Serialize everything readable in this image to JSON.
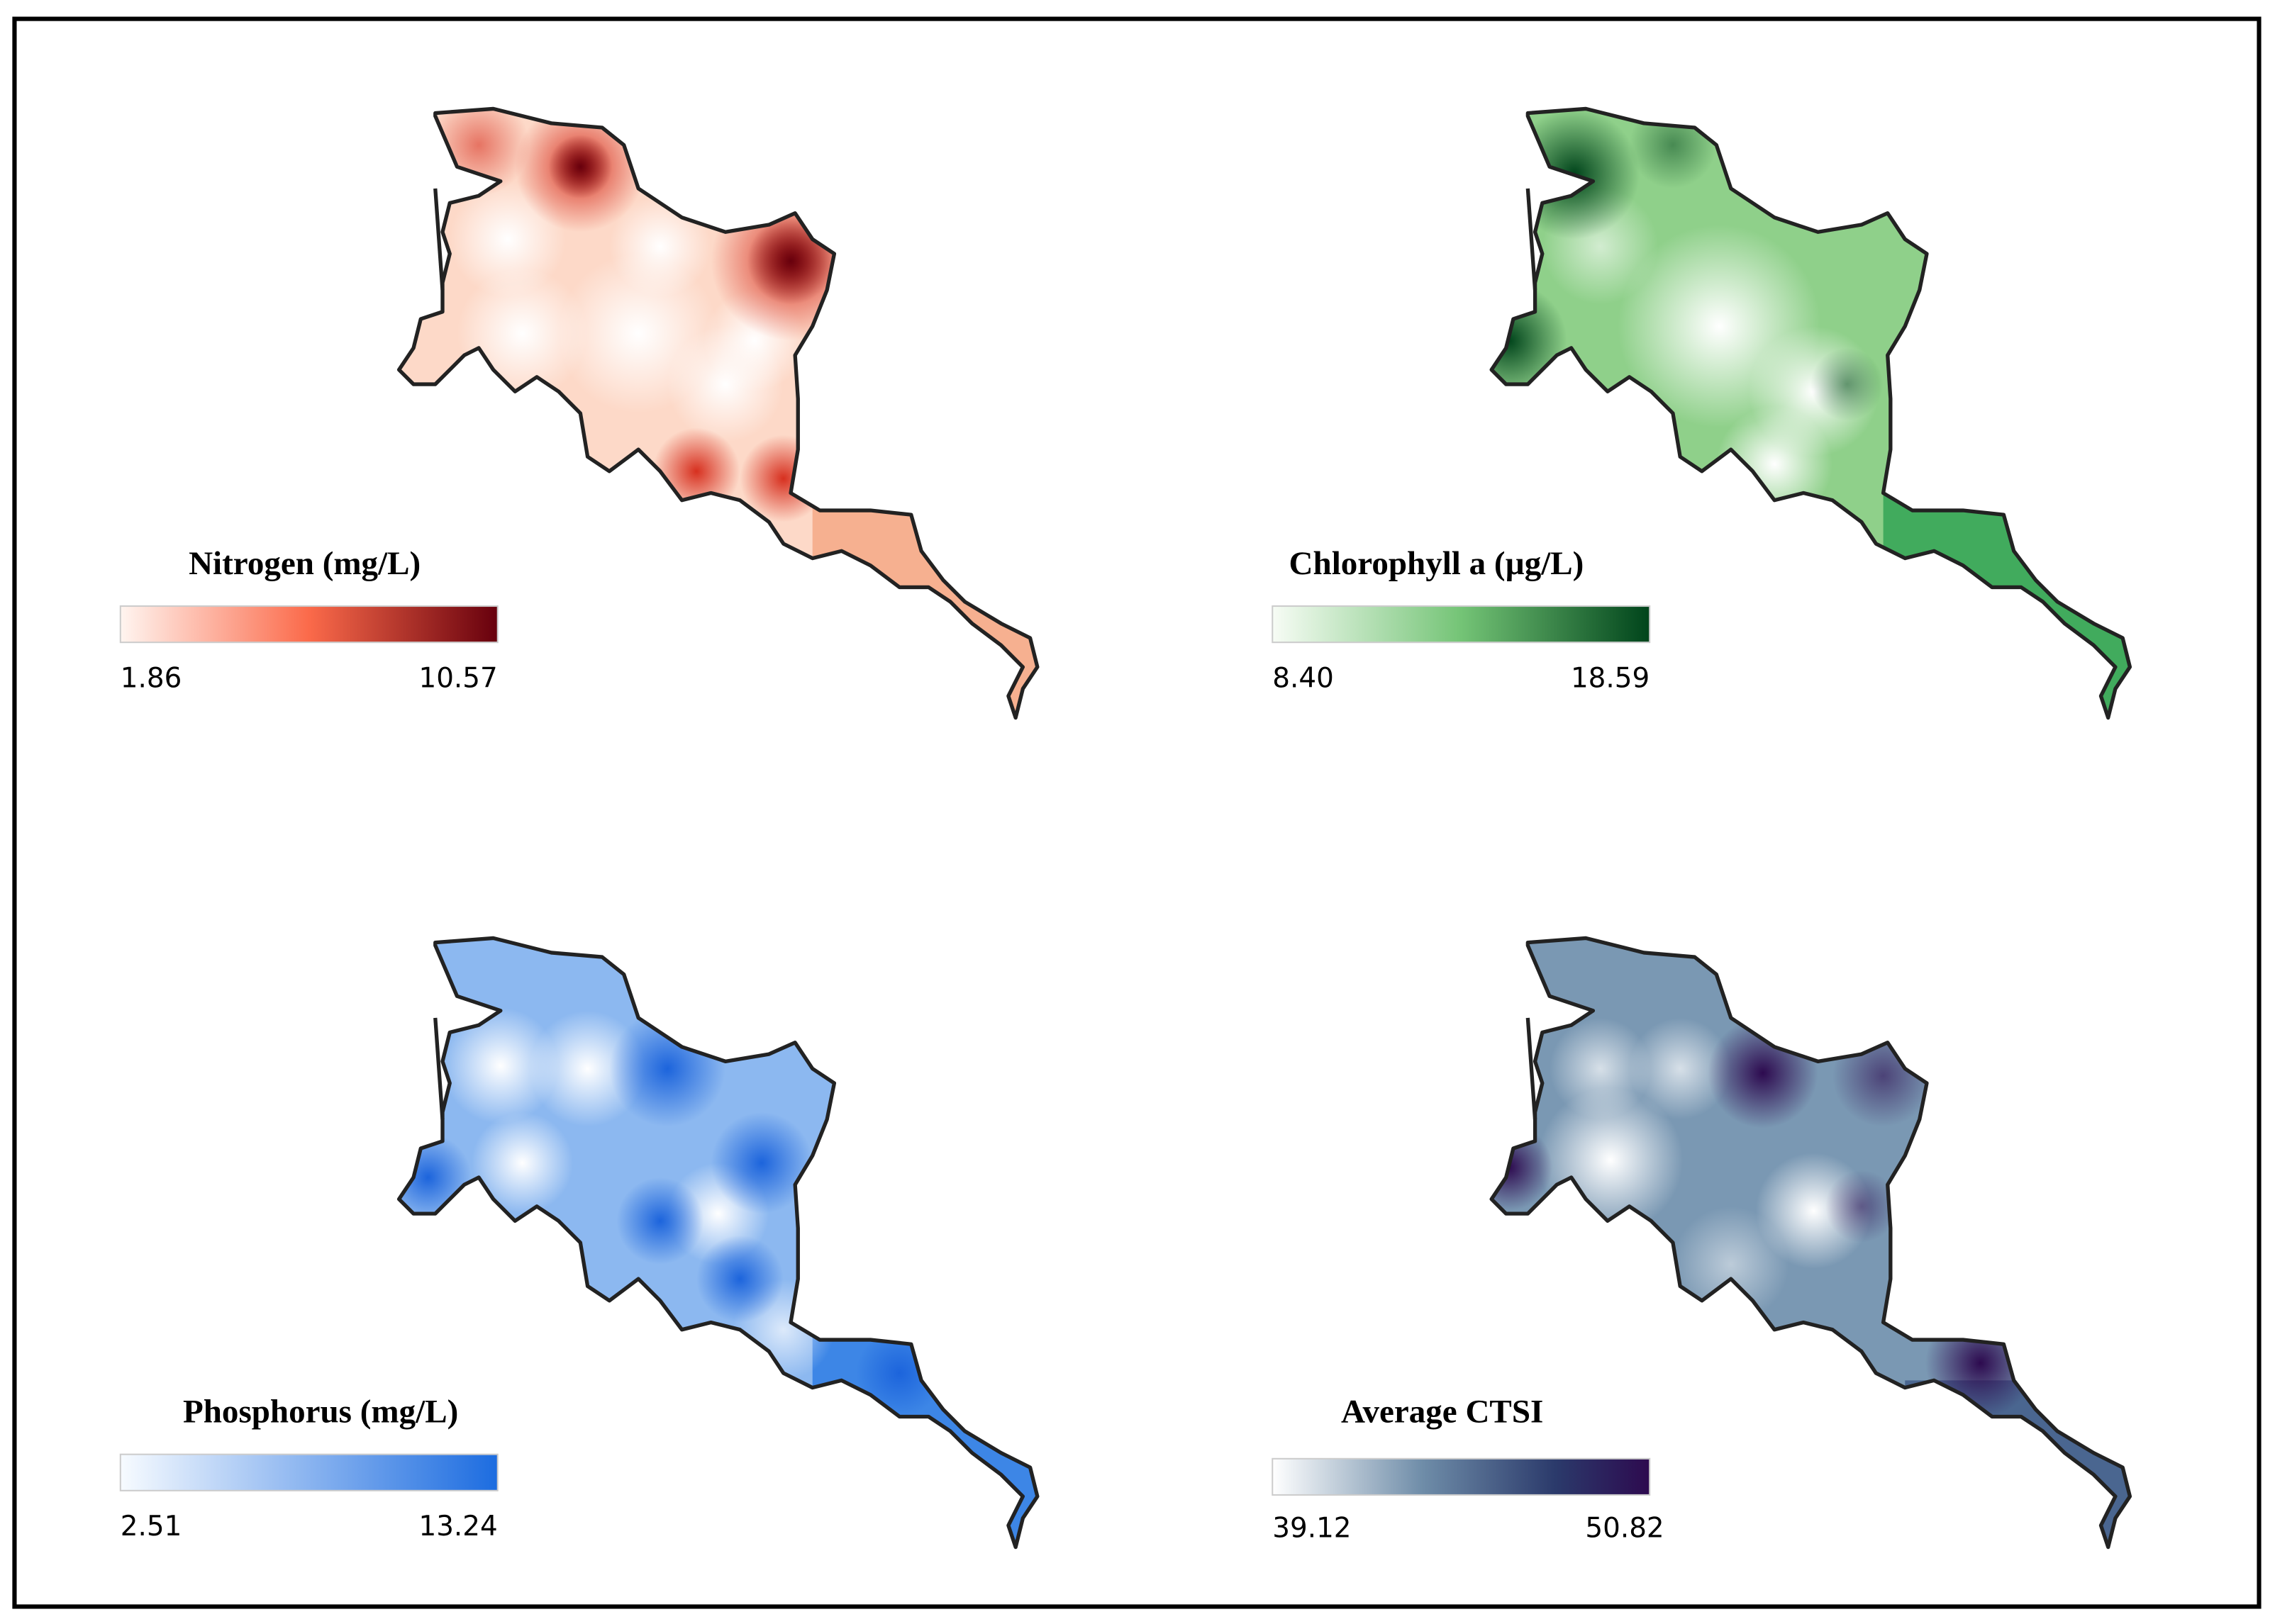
{
  "panels": [
    {
      "title": "Nitrogen (mg/L)",
      "min": "1.86",
      "max": "10.57"
    },
    {
      "title": "Chlorophyll a (µg/L)",
      "min": "8.40",
      "max": "18.59"
    },
    {
      "title": "Phosphorus (mg/L)",
      "min": "2.51",
      "max": "13.24"
    },
    {
      "title": "Average CTSI",
      "min": "39.12",
      "max": "50.82"
    }
  ]
}
